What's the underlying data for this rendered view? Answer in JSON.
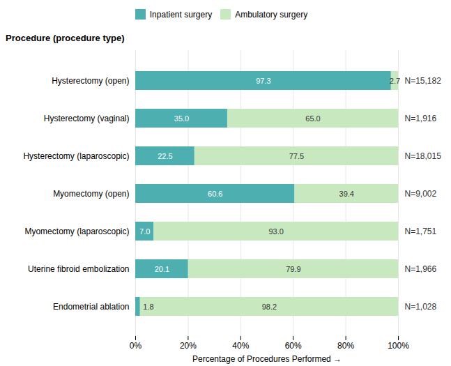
{
  "chart_data": {
    "type": "bar",
    "orientation": "horizontal",
    "stacked": true,
    "data_labels": true,
    "grid": true,
    "legend": "top",
    "xlabel": "Percentage of Procedures Performed",
    "ylabel": "Procedure (procedure type)",
    "categories": [
      "Hysterectomy (open)",
      "Hysterectomy (vaginal)",
      "Hysterectomy (laparoscopic)",
      "Myomectomy (open)",
      "Myomectomy (laparoscopic)",
      "Uterine fibroid embolization",
      "Endometrial ablation"
    ],
    "series": [
      {
        "name": "Inpatient surgery",
        "color": "#4DAFAF",
        "values": [
          97.3,
          35.0,
          22.5,
          60.6,
          7.0,
          20.1,
          1.8
        ],
        "value_labels": [
          "97.3",
          "35.0",
          "22.5",
          "60.6",
          "7.0",
          "20.1",
          "1.8"
        ]
      },
      {
        "name": "Ambulatory surgery",
        "color": "#C8E8C0",
        "values": [
          2.7,
          65.0,
          77.5,
          39.4,
          93.0,
          79.9,
          98.2
        ],
        "value_labels": [
          "2.7",
          "65.0",
          "77.5",
          "39.4",
          "93.0",
          "79.9",
          "98.2"
        ]
      }
    ],
    "annotations": [
      "N=15,182",
      "N=1,916",
      "N=18,015",
      "N=9,002",
      "N=1,751",
      "N=1,966",
      "N=1,028"
    ],
    "xlim": [
      0,
      100
    ],
    "xticks": [
      {
        "value": 0,
        "label": "0%"
      },
      {
        "value": 20,
        "label": "20%"
      },
      {
        "value": 40,
        "label": "40%"
      },
      {
        "value": 60,
        "label": "60%"
      },
      {
        "value": 80,
        "label": "80%"
      },
      {
        "value": 100,
        "label": "100%"
      }
    ]
  }
}
